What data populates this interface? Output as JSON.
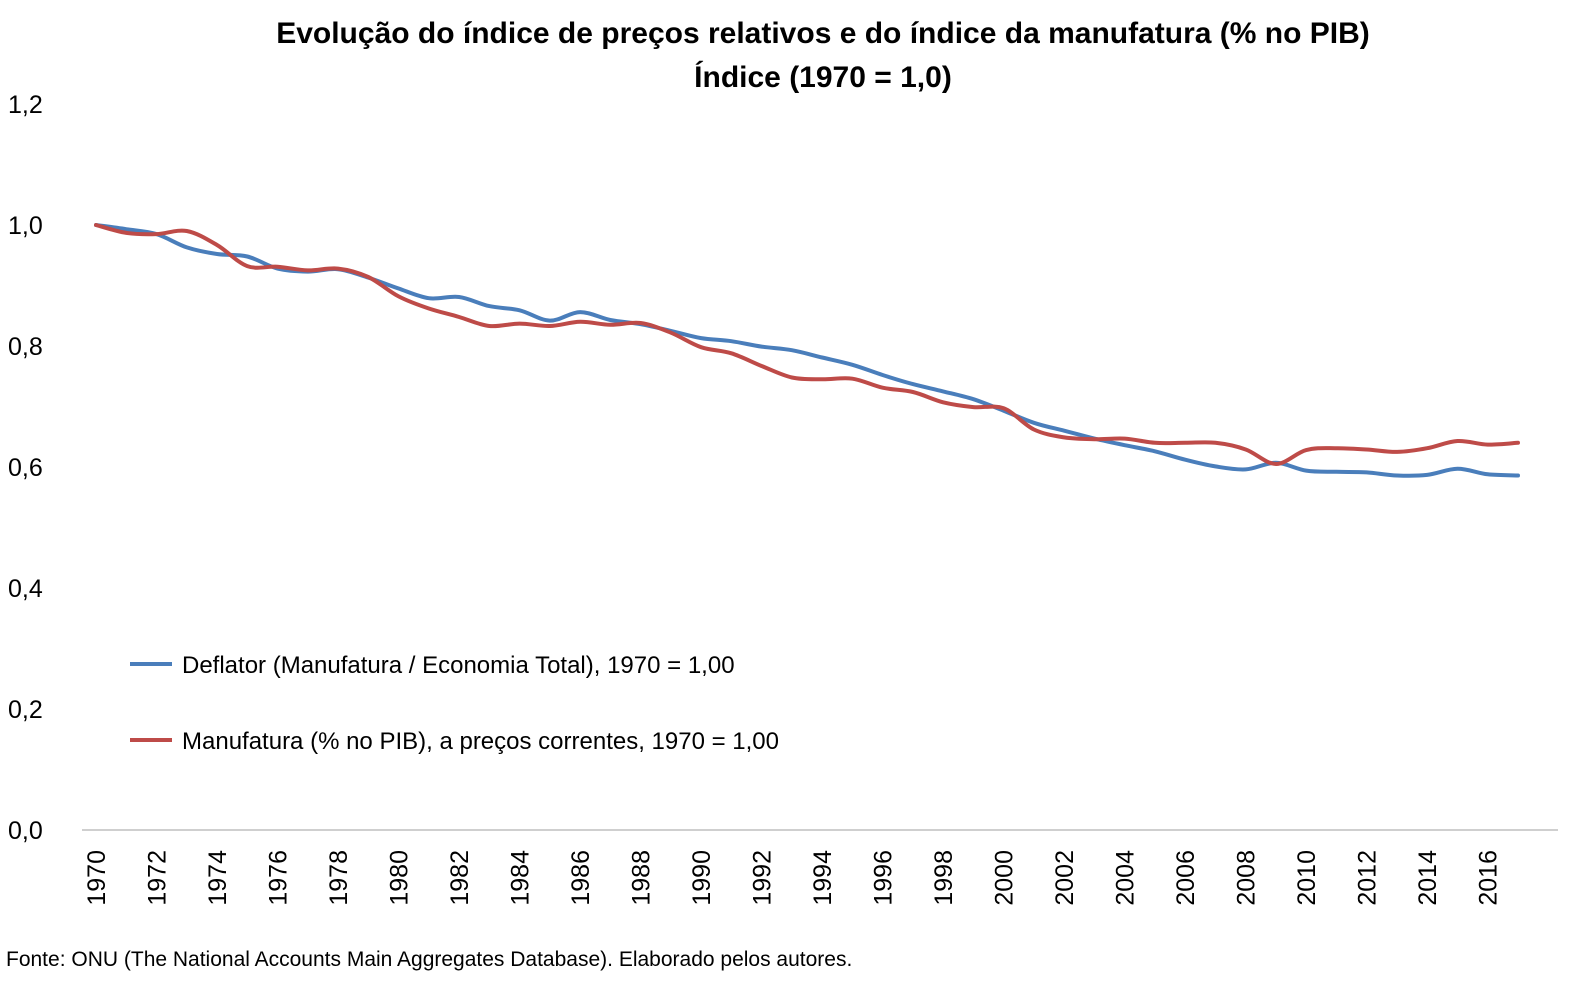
{
  "chart_data": {
    "type": "line",
    "title": "Evolução do índice de preços relativos e do índice da manufatura (% no PIB)",
    "subtitle": "Índice (1970 = 1,0)",
    "xlabel": "",
    "ylabel": "",
    "ylim": [
      0,
      1.2
    ],
    "y_ticks": [
      "0,0",
      "0,2",
      "0,4",
      "0,6",
      "0,8",
      "1,0",
      "1,2"
    ],
    "y_tick_values": [
      0,
      0.2,
      0.4,
      0.6,
      0.8,
      1.0,
      1.2
    ],
    "x_tick_labels": [
      "1970",
      "1972",
      "1974",
      "1976",
      "1978",
      "1980",
      "1982",
      "1984",
      "1986",
      "1988",
      "1990",
      "1992",
      "1994",
      "1996",
      "1998",
      "2000",
      "2002",
      "2004",
      "2006",
      "2008",
      "2010",
      "2012",
      "2014",
      "2016"
    ],
    "x": [
      1970,
      1971,
      1972,
      1973,
      1974,
      1975,
      1976,
      1977,
      1978,
      1979,
      1980,
      1981,
      1982,
      1983,
      1984,
      1985,
      1986,
      1987,
      1988,
      1989,
      1990,
      1991,
      1992,
      1993,
      1994,
      1995,
      1996,
      1997,
      1998,
      1999,
      2000,
      2001,
      2002,
      2003,
      2004,
      2005,
      2006,
      2007,
      2008,
      2009,
      2010,
      2011,
      2012,
      2013,
      2014,
      2015,
      2016,
      2017
    ],
    "grid": false,
    "legend_position": "lower-left",
    "series": [
      {
        "name": "Deflator (Manufatura / Economia Total), 1970 = 1,00",
        "color": "#4a7ebb",
        "values": [
          1.0,
          0.993,
          0.985,
          0.963,
          0.952,
          0.948,
          0.928,
          0.923,
          0.927,
          0.913,
          0.895,
          0.879,
          0.881,
          0.866,
          0.859,
          0.842,
          0.856,
          0.843,
          0.836,
          0.825,
          0.813,
          0.808,
          0.799,
          0.793,
          0.781,
          0.769,
          0.752,
          0.737,
          0.725,
          0.712,
          0.693,
          0.673,
          0.66,
          0.647,
          0.636,
          0.626,
          0.612,
          0.601,
          0.596,
          0.607,
          0.594,
          0.592,
          0.591,
          0.586,
          0.587,
          0.597,
          0.588,
          0.586
        ]
      },
      {
        "name": "Manufatura (% no PIB), a preços correntes, 1970 = 1,00",
        "color": "#be4b48",
        "values": [
          1.0,
          0.987,
          0.985,
          0.99,
          0.967,
          0.932,
          0.931,
          0.925,
          0.928,
          0.914,
          0.882,
          0.862,
          0.848,
          0.833,
          0.837,
          0.833,
          0.84,
          0.835,
          0.838,
          0.822,
          0.798,
          0.788,
          0.767,
          0.748,
          0.745,
          0.746,
          0.731,
          0.724,
          0.707,
          0.699,
          0.697,
          0.662,
          0.649,
          0.646,
          0.647,
          0.64,
          0.64,
          0.64,
          0.629,
          0.605,
          0.628,
          0.631,
          0.629,
          0.625,
          0.631,
          0.643,
          0.637,
          0.64
        ]
      }
    ]
  },
  "source_note": "Fonte: ONU (The National Accounts Main Aggregates Database). Elaborado pelos autores."
}
